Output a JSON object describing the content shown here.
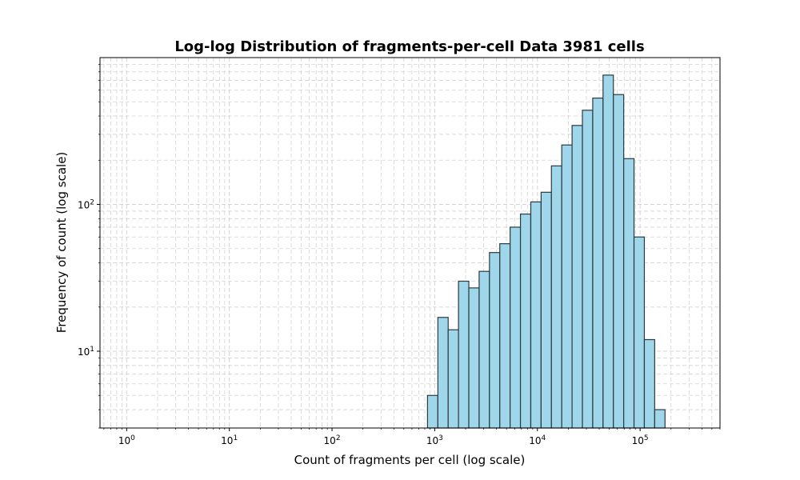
{
  "chart_data": {
    "type": "bar",
    "title": "Log-log Distribution of fragments-per-cell Data 3981 cells",
    "xlabel": "Count of fragments per cell (log scale)",
    "ylabel": "Frequency of count (log scale)",
    "xscale": "log",
    "yscale": "log",
    "xlim": [
      0.55,
      600000
    ],
    "ylim": [
      3.0,
      1000
    ],
    "grid": true,
    "colors": {
      "bar_fill": "#9fd6ea",
      "bar_edge": "#2a3a40",
      "grid": "#d3d3d3"
    },
    "xticks": [
      {
        "base": "10",
        "exp": "0",
        "value": 1
      },
      {
        "base": "10",
        "exp": "1",
        "value": 10
      },
      {
        "base": "10",
        "exp": "2",
        "value": 100
      },
      {
        "base": "10",
        "exp": "3",
        "value": 1000
      },
      {
        "base": "10",
        "exp": "4",
        "value": 10000
      },
      {
        "base": "10",
        "exp": "5",
        "value": 100000
      }
    ],
    "yticks": [
      {
        "base": "10",
        "exp": "1",
        "value": 10
      },
      {
        "base": "10",
        "exp": "2",
        "value": 100
      }
    ],
    "bins": [
      {
        "x0": 851,
        "x1": 1073,
        "count": 5
      },
      {
        "x0": 1073,
        "x1": 1352,
        "count": 17
      },
      {
        "x0": 1352,
        "x1": 1704,
        "count": 14
      },
      {
        "x0": 1704,
        "x1": 2148,
        "count": 30
      },
      {
        "x0": 2148,
        "x1": 2708,
        "count": 27
      },
      {
        "x0": 2708,
        "x1": 3413,
        "count": 35
      },
      {
        "x0": 3413,
        "x1": 4303,
        "count": 47
      },
      {
        "x0": 4303,
        "x1": 5424,
        "count": 54
      },
      {
        "x0": 5424,
        "x1": 6837,
        "count": 70
      },
      {
        "x0": 6837,
        "x1": 8618,
        "count": 86
      },
      {
        "x0": 8618,
        "x1": 10863,
        "count": 104
      },
      {
        "x0": 10863,
        "x1": 13693,
        "count": 121
      },
      {
        "x0": 13693,
        "x1": 17261,
        "count": 183
      },
      {
        "x0": 17261,
        "x1": 21758,
        "count": 254
      },
      {
        "x0": 21758,
        "x1": 27427,
        "count": 345
      },
      {
        "x0": 27427,
        "x1": 34573,
        "count": 438
      },
      {
        "x0": 34573,
        "x1": 43581,
        "count": 530
      },
      {
        "x0": 43581,
        "x1": 54936,
        "count": 760
      },
      {
        "x0": 54936,
        "x1": 69249,
        "count": 560
      },
      {
        "x0": 69249,
        "x1": 87292,
        "count": 205
      },
      {
        "x0": 87292,
        "x1": 110035,
        "count": 60
      },
      {
        "x0": 110035,
        "x1": 138705,
        "count": 12
      },
      {
        "x0": 138705,
        "x1": 174844,
        "count": 4
      }
    ]
  }
}
